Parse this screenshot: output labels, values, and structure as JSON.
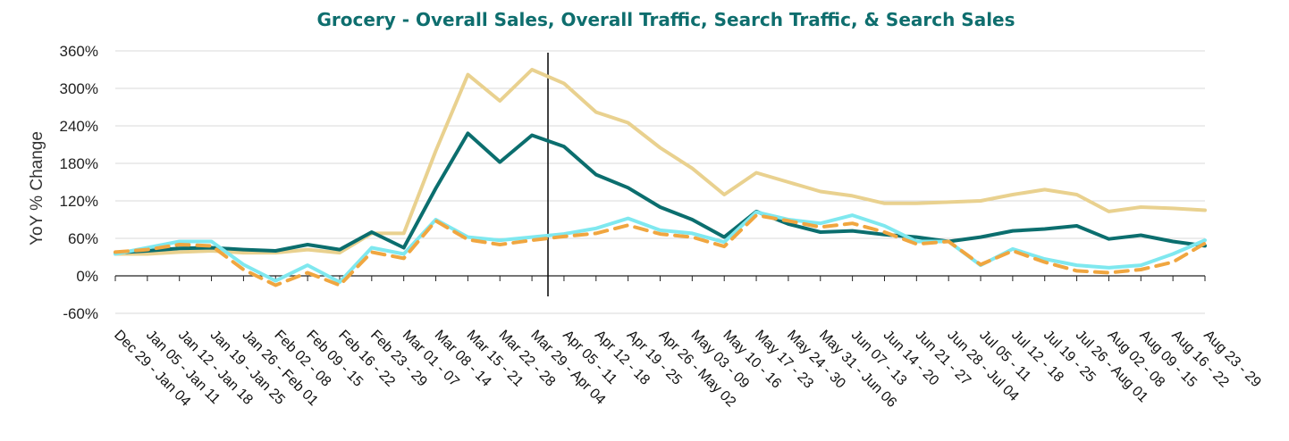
{
  "colors": {
    "title": "#0e6e6e",
    "overall_sales": "#e9d18f",
    "overall_traffic": "#0b6e6e",
    "search_traffic": "#7fe8ef",
    "search_sales": "#f0a640",
    "marker_line": "#111111"
  },
  "chart_data": {
    "type": "line",
    "title": "Grocery - Overall Sales, Overall Traffic, Search Traffic, & Search Sales",
    "xlabel": "",
    "ylabel": "YoY % Change",
    "ylim": [
      -60,
      360
    ],
    "yticks": [
      -60,
      0,
      60,
      120,
      180,
      240,
      300,
      360
    ],
    "ytick_labels": [
      "-60%",
      "0%",
      "60%",
      "120%",
      "180%",
      "240%",
      "300%",
      "360%"
    ],
    "grid": true,
    "legend": "none",
    "vertical_marker_after": "Mar 29 - Apr 04",
    "categories": [
      "Dec 29 - Jan 04",
      "Jan 05 - Jan 11",
      "Jan 12 - Jan 18",
      "Jan 19 - Jan 25",
      "Jan 26 - Feb 01",
      "Feb 02 - 08",
      "Feb 09 - 15",
      "Feb 16 - 22",
      "Feb 23 - 29",
      "Mar 01 - 07",
      "Mar 08 - 14",
      "Mar 15 - 21",
      "Mar 22 - 28",
      "Mar 29 - Apr 04",
      "Apr 05 - 11",
      "Apr 12 - 18",
      "Apr 19 - 25",
      "Apr 26 - May 02",
      "May 03 - 09",
      "May 10 - 16",
      "May 17 - 23",
      "May 24 - 30",
      "May 31 - Jun 06",
      "Jun 07 - 13",
      "Jun 14 - 20",
      "Jun 21 - 27",
      "Jun 28 - Jul 04",
      "Jul 05 - 11",
      "Jul 12 - 18",
      "Jul 19 - 25",
      "Jul 26 - Aug 01",
      "Aug 02 - 08",
      "Aug 09 - 15",
      "Aug 16 - 22",
      "Aug 23 - 29"
    ],
    "series": [
      {
        "key": "overall_sales",
        "style": "solid",
        "values": [
          35,
          35,
          38,
          40,
          37,
          37,
          42,
          37,
          68,
          68,
          200,
          322,
          280,
          330,
          308,
          262,
          245,
          205,
          172,
          130,
          165,
          150,
          135,
          128,
          116,
          116,
          118,
          120,
          130,
          138,
          130,
          103,
          110,
          108,
          105
        ]
      },
      {
        "key": "overall_traffic",
        "style": "solid",
        "values": [
          37,
          40,
          44,
          45,
          42,
          40,
          50,
          42,
          70,
          45,
          140,
          228,
          182,
          225,
          207,
          162,
          141,
          110,
          90,
          62,
          103,
          83,
          70,
          72,
          66,
          62,
          55,
          62,
          72,
          75,
          80,
          59,
          65,
          55,
          48
        ]
      },
      {
        "key": "search_traffic",
        "style": "solid",
        "values": [
          35,
          45,
          55,
          55,
          18,
          -8,
          17,
          -10,
          45,
          35,
          90,
          62,
          57,
          62,
          67,
          76,
          92,
          73,
          68,
          54,
          102,
          90,
          84,
          97,
          80,
          55,
          55,
          17,
          43,
          27,
          17,
          13,
          17,
          35,
          57
        ]
      },
      {
        "key": "search_sales",
        "style": "dashed",
        "values": [
          38,
          42,
          50,
          48,
          10,
          -15,
          5,
          -15,
          38,
          28,
          88,
          58,
          50,
          57,
          63,
          68,
          81,
          67,
          62,
          47,
          97,
          88,
          78,
          84,
          70,
          51,
          55,
          18,
          40,
          22,
          8,
          5,
          10,
          22,
          52
        ]
      }
    ]
  }
}
